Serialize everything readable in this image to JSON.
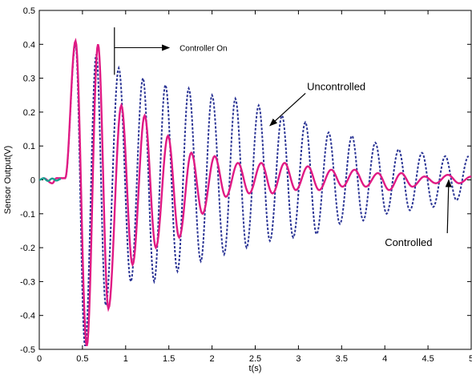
{
  "chart_data": {
    "type": "line",
    "xlabel": "t(s)",
    "ylabel": "Sensor Output(V)",
    "xlim": [
      0,
      5
    ],
    "ylim": [
      -0.5,
      0.5
    ],
    "xticks": [
      0,
      0.5,
      1,
      1.5,
      2,
      2.5,
      3,
      3.5,
      4,
      4.5,
      5
    ],
    "xtick_labels": [
      "0",
      "0.5",
      "1",
      "1.5",
      "2",
      "2.5",
      "3",
      "3.5",
      "4",
      "4.5",
      "5"
    ],
    "yticks": [
      0.5,
      0.4,
      0.3,
      0.2,
      0.1,
      0,
      -0.1,
      -0.2,
      -0.3,
      -0.4,
      -0.5
    ],
    "ytick_labels": [
      "0.5",
      "0.4",
      "0.3",
      "0.2",
      "0.1",
      "0",
      "-0.1",
      "-0.2",
      "-0.3",
      "-0.4",
      "-0.5"
    ],
    "grid": false,
    "series": [
      {
        "name": "Uncontrolled",
        "style": "dashed",
        "color": "#2b3595",
        "frequency_hz": 7.4,
        "points": [
          [
            0.05,
            0.005
          ],
          [
            0.15,
            -0.01
          ],
          [
            0.2,
            0.005
          ],
          [
            0.3,
            0.005
          ],
          [
            0.42,
            0.4
          ],
          [
            0.53,
            -0.49
          ],
          [
            0.66,
            0.37
          ],
          [
            0.77,
            -0.37
          ],
          [
            0.92,
            0.33
          ],
          [
            1.06,
            -0.3
          ],
          [
            1.2,
            0.3
          ],
          [
            1.33,
            -0.3
          ],
          [
            1.46,
            0.28
          ],
          [
            1.6,
            -0.27
          ],
          [
            1.73,
            0.27
          ],
          [
            1.87,
            -0.24
          ],
          [
            2.0,
            0.25
          ],
          [
            2.14,
            -0.22
          ],
          [
            2.27,
            0.24
          ],
          [
            2.4,
            -0.2
          ],
          [
            2.54,
            0.22
          ],
          [
            2.67,
            -0.18
          ],
          [
            2.81,
            0.19
          ],
          [
            2.94,
            -0.17
          ],
          [
            3.08,
            0.17
          ],
          [
            3.21,
            -0.16
          ],
          [
            3.35,
            0.14
          ],
          [
            3.48,
            -0.13
          ],
          [
            3.62,
            0.13
          ],
          [
            3.75,
            -0.12
          ],
          [
            3.89,
            0.11
          ],
          [
            4.02,
            -0.1
          ],
          [
            4.16,
            0.09
          ],
          [
            4.29,
            -0.09
          ],
          [
            4.43,
            0.08
          ],
          [
            4.56,
            -0.08
          ],
          [
            4.7,
            0.07
          ],
          [
            4.83,
            -0.06
          ],
          [
            4.97,
            0.07
          ]
        ]
      },
      {
        "name": "Controlled",
        "style": "solid",
        "color": "#e01a84",
        "points": [
          [
            0.05,
            0.005
          ],
          [
            0.15,
            -0.01
          ],
          [
            0.2,
            0.005
          ],
          [
            0.3,
            0.005
          ],
          [
            0.42,
            0.41
          ],
          [
            0.55,
            -0.49
          ],
          [
            0.68,
            0.4
          ],
          [
            0.8,
            -0.38
          ],
          [
            0.95,
            0.22
          ],
          [
            1.08,
            -0.25
          ],
          [
            1.22,
            0.19
          ],
          [
            1.35,
            -0.2
          ],
          [
            1.49,
            0.13
          ],
          [
            1.62,
            -0.17
          ],
          [
            1.76,
            0.08
          ],
          [
            1.89,
            -0.1
          ],
          [
            2.03,
            0.07
          ],
          [
            2.16,
            -0.05
          ],
          [
            2.3,
            0.05
          ],
          [
            2.43,
            -0.04
          ],
          [
            2.57,
            0.05
          ],
          [
            2.7,
            -0.04
          ],
          [
            2.84,
            0.05
          ],
          [
            2.97,
            -0.03
          ],
          [
            3.11,
            0.04
          ],
          [
            3.24,
            -0.03
          ],
          [
            3.38,
            0.03
          ],
          [
            3.51,
            -0.02
          ],
          [
            3.65,
            0.03
          ],
          [
            3.78,
            -0.02
          ],
          [
            3.92,
            0.02
          ],
          [
            4.05,
            -0.03
          ],
          [
            4.19,
            0.02
          ],
          [
            4.32,
            -0.02
          ],
          [
            4.46,
            0.01
          ],
          [
            4.59,
            -0.01
          ],
          [
            4.73,
            0.015
          ],
          [
            4.86,
            -0.01
          ],
          [
            5.0,
            0.01
          ]
        ]
      },
      {
        "name": "",
        "style": "solid",
        "color": "#1a9e8f",
        "points": [
          [
            0.0,
            0.0
          ],
          [
            0.05,
            0.005
          ],
          [
            0.1,
            -0.003
          ],
          [
            0.15,
            0.004
          ],
          [
            0.2,
            -0.002
          ],
          [
            0.25,
            0.003
          ]
        ]
      }
    ],
    "annotations": [
      {
        "text": "Controller On",
        "style": "vertical-marker",
        "marker_x": 0.87,
        "marker_y_range": [
          0.31,
          0.45
        ],
        "arrow_to": [
          1.55,
          0.39
        ]
      },
      {
        "text": "Uncontrolled",
        "text_at": [
          3.1,
          0.265
        ],
        "arrow_to": [
          2.67,
          0.16
        ]
      },
      {
        "text": "Controlled",
        "text_at": [
          4.0,
          -0.195
        ],
        "arrow_to": [
          4.74,
          0.0
        ]
      }
    ]
  },
  "axis_line_color": "#000000"
}
